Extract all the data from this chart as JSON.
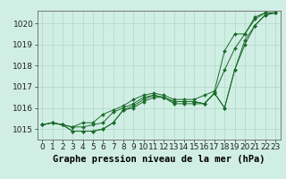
{
  "title": "Graphe pression niveau de la mer (hPa)",
  "xlabel_hours": [
    0,
    1,
    2,
    3,
    4,
    5,
    6,
    7,
    8,
    9,
    10,
    11,
    12,
    13,
    14,
    15,
    16,
    17,
    18,
    19,
    20,
    21,
    22,
    23
  ],
  "ylim": [
    1014.5,
    1020.6
  ],
  "xlim": [
    -0.5,
    23.5
  ],
  "yticks": [
    1015,
    1016,
    1017,
    1018,
    1019,
    1020
  ],
  "xtick_labels": [
    "0",
    "1",
    "2",
    "3",
    "4",
    "5",
    "6",
    "7",
    "8",
    "9",
    "10",
    "11",
    "12",
    "13",
    "14",
    "15",
    "16",
    "17",
    "18",
    "19",
    "20",
    "21",
    "22",
    "23"
  ],
  "bg_color": "#d0eee4",
  "grid_color": "#b0d8c8",
  "line_color": "#1a6b2a",
  "series": [
    [
      1015.2,
      1015.3,
      1015.2,
      1014.9,
      1014.9,
      1014.9,
      1015.0,
      1015.3,
      1015.9,
      1016.0,
      1016.3,
      1016.5,
      1016.5,
      1016.3,
      1016.3,
      1016.3,
      1016.2,
      1016.7,
      1016.0,
      1017.8,
      1019.0,
      1019.9,
      1020.4,
      1020.5
    ],
    [
      1015.2,
      1015.3,
      1015.2,
      1014.9,
      1014.9,
      1014.9,
      1015.0,
      1015.3,
      1015.9,
      1016.1,
      1016.4,
      1016.6,
      1016.5,
      1016.2,
      1016.2,
      1016.2,
      1016.2,
      1016.7,
      1016.0,
      1017.8,
      1019.2,
      1019.9,
      1020.4,
      1020.5
    ],
    [
      1015.2,
      1015.3,
      1015.2,
      1015.1,
      1015.1,
      1015.2,
      1015.3,
      1015.8,
      1016.0,
      1016.2,
      1016.5,
      1016.6,
      1016.5,
      1016.3,
      1016.3,
      1016.3,
      1016.2,
      1016.7,
      1017.8,
      1018.8,
      1019.5,
      1020.2,
      1020.5,
      1020.5
    ],
    [
      1015.2,
      1015.3,
      1015.2,
      1015.1,
      1015.3,
      1015.3,
      1015.7,
      1015.9,
      1016.1,
      1016.4,
      1016.6,
      1016.7,
      1016.6,
      1016.4,
      1016.4,
      1016.4,
      1016.6,
      1016.8,
      1018.7,
      1019.5,
      1019.5,
      1020.3,
      1020.5,
      1020.5
    ]
  ],
  "title_fontsize": 7.5,
  "tick_fontsize": 6.5
}
